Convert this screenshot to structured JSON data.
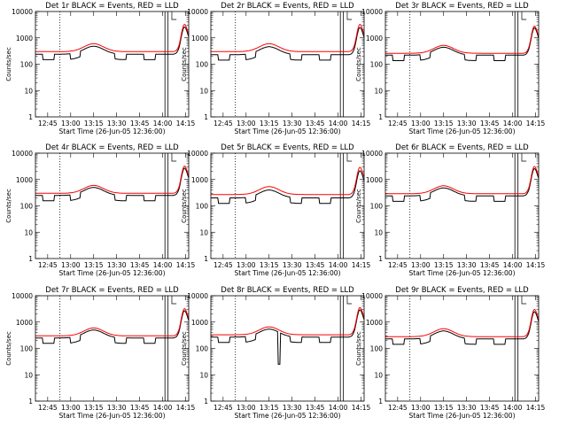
{
  "figure": {
    "start_time_label": "Start Time (26-Jun-05 12:36:00)",
    "ylabel": "Counts/sec"
  },
  "chart_data": [
    {
      "type": "line",
      "title": "Det 1r BLACK = Events, RED = LLD",
      "xlabel": "Start Time (26-Jun-05 12:36:00)",
      "ylabel": "Counts/sec",
      "yscale": "log",
      "ylim": [
        1,
        10000
      ],
      "xlim": [
        0,
        100
      ],
      "x_ticks": [
        "12:45",
        "13:00",
        "13:15",
        "13:30",
        "13:45",
        "14:00",
        "14:15"
      ],
      "y_ticks": [
        "1",
        "10",
        "100",
        "1000",
        "10000"
      ],
      "series": [
        {
          "name": "Events",
          "color": "#000000",
          "base": 240,
          "outlier": 0
        },
        {
          "name": "LLD",
          "color": "#ff0000",
          "base": 300,
          "outlier": 0
        }
      ]
    },
    {
      "type": "line",
      "title": "Det 2r BLACK = Events, RED = LLD",
      "xlabel": "Start Time (26-Jun-05 12:36:00)",
      "ylabel": "Counts/sec",
      "yscale": "log",
      "ylim": [
        1,
        10000
      ],
      "xlim": [
        0,
        100
      ],
      "x_ticks": [
        "12:45",
        "13:00",
        "13:15",
        "13:30",
        "13:45",
        "14:00",
        "14:15"
      ],
      "y_ticks": [
        "1",
        "10",
        "100",
        "1000",
        "10000"
      ],
      "series": [
        {
          "name": "Events",
          "color": "#000000",
          "base": 230,
          "outlier": 0
        },
        {
          "name": "LLD",
          "color": "#ff0000",
          "base": 300,
          "outlier": 0
        }
      ]
    },
    {
      "type": "line",
      "title": "Det 3r BLACK = Events, RED = LLD",
      "xlabel": "Start Time (26-Jun-05 12:36:00)",
      "ylabel": "Counts/sec",
      "yscale": "log",
      "ylim": [
        1,
        10000
      ],
      "xlim": [
        0,
        100
      ],
      "x_ticks": [
        "12:45",
        "13:00",
        "13:15",
        "13:30",
        "13:45",
        "14:00",
        "14:15"
      ],
      "y_ticks": [
        "1",
        "10",
        "100",
        "1000",
        "10000"
      ],
      "series": [
        {
          "name": "Events",
          "color": "#000000",
          "base": 220,
          "outlier": 0
        },
        {
          "name": "LLD",
          "color": "#ff0000",
          "base": 260,
          "outlier": 0
        }
      ]
    },
    {
      "type": "line",
      "title": "Det 4r BLACK = Events, RED = LLD",
      "xlabel": "Start Time (26-Jun-05 12:36:00)",
      "ylabel": "Counts/sec",
      "yscale": "log",
      "ylim": [
        1,
        10000
      ],
      "xlim": [
        0,
        100
      ],
      "x_ticks": [
        "12:45",
        "13:00",
        "13:15",
        "13:30",
        "13:45",
        "14:00",
        "14:15"
      ],
      "y_ticks": [
        "1",
        "10",
        "100",
        "1000",
        "10000"
      ],
      "series": [
        {
          "name": "Events",
          "color": "#000000",
          "base": 250,
          "outlier": 0
        },
        {
          "name": "LLD",
          "color": "#ff0000",
          "base": 300,
          "outlier": 0
        }
      ]
    },
    {
      "type": "line",
      "title": "Det 5r BLACK = Events, RED = LLD",
      "xlabel": "Start Time (26-Jun-05 12:36:00)",
      "ylabel": "Counts/sec",
      "yscale": "log",
      "ylim": [
        1,
        10000
      ],
      "xlim": [
        0,
        100
      ],
      "x_ticks": [
        "12:45",
        "13:00",
        "13:15",
        "13:30",
        "13:45",
        "14:00",
        "14:15"
      ],
      "y_ticks": [
        "1",
        "10",
        "100",
        "1000",
        "10000"
      ],
      "series": [
        {
          "name": "Events",
          "color": "#000000",
          "base": 200,
          "outlier": 0
        },
        {
          "name": "LLD",
          "color": "#ff0000",
          "base": 270,
          "outlier": 0
        }
      ]
    },
    {
      "type": "line",
      "title": "Det 6r BLACK = Events, RED = LLD",
      "xlabel": "Start Time (26-Jun-05 12:36:00)",
      "ylabel": "Counts/sec",
      "yscale": "log",
      "ylim": [
        1,
        10000
      ],
      "xlim": [
        0,
        100
      ],
      "x_ticks": [
        "12:45",
        "13:00",
        "13:15",
        "13:30",
        "13:45",
        "14:00",
        "14:15"
      ],
      "y_ticks": [
        "1",
        "10",
        "100",
        "1000",
        "10000"
      ],
      "series": [
        {
          "name": "Events",
          "color": "#000000",
          "base": 240,
          "outlier": 0
        },
        {
          "name": "LLD",
          "color": "#ff0000",
          "base": 290,
          "outlier": 0
        }
      ]
    },
    {
      "type": "line",
      "title": "Det 7r BLACK = Events, RED = LLD",
      "xlabel": "Start Time (26-Jun-05 12:36:00)",
      "ylabel": "Counts/sec",
      "yscale": "log",
      "ylim": [
        1,
        10000
      ],
      "xlim": [
        0,
        100
      ],
      "x_ticks": [
        "12:45",
        "13:00",
        "13:15",
        "13:30",
        "13:45",
        "14:00",
        "14:15"
      ],
      "y_ticks": [
        "1",
        "10",
        "100",
        "1000",
        "10000"
      ],
      "series": [
        {
          "name": "Events",
          "color": "#000000",
          "base": 250,
          "outlier": 0
        },
        {
          "name": "LLD",
          "color": "#ff0000",
          "base": 300,
          "outlier": 0
        }
      ]
    },
    {
      "type": "line",
      "title": "Det 8r BLACK = Events, RED = LLD",
      "xlabel": "Start Time (26-Jun-05 12:36:00)",
      "ylabel": "Counts/sec",
      "yscale": "log",
      "ylim": [
        1,
        10000
      ],
      "xlim": [
        0,
        100
      ],
      "x_ticks": [
        "12:45",
        "13:00",
        "13:15",
        "13:30",
        "13:45",
        "14:00",
        "14:15"
      ],
      "y_ticks": [
        "1",
        "10",
        "100",
        "1000",
        "10000"
      ],
      "series": [
        {
          "name": "Events",
          "color": "#000000",
          "base": 270,
          "outlier": 25
        },
        {
          "name": "LLD",
          "color": "#ff0000",
          "base": 330,
          "outlier": 0
        }
      ]
    },
    {
      "type": "line",
      "title": "Det 9r BLACK = Events, RED = LLD",
      "xlabel": "Start Time (26-Jun-05 12:36:00)",
      "ylabel": "Counts/sec",
      "yscale": "log",
      "ylim": [
        1,
        10000
      ],
      "xlim": [
        0,
        100
      ],
      "x_ticks": [
        "12:45",
        "13:00",
        "13:15",
        "13:30",
        "13:45",
        "14:00",
        "14:15"
      ],
      "y_ticks": [
        "1",
        "10",
        "100",
        "1000",
        "10000"
      ],
      "series": [
        {
          "name": "Events",
          "color": "#000000",
          "base": 230,
          "outlier": 0
        },
        {
          "name": "LLD",
          "color": "#ff0000",
          "base": 280,
          "outlier": 0
        }
      ]
    }
  ]
}
